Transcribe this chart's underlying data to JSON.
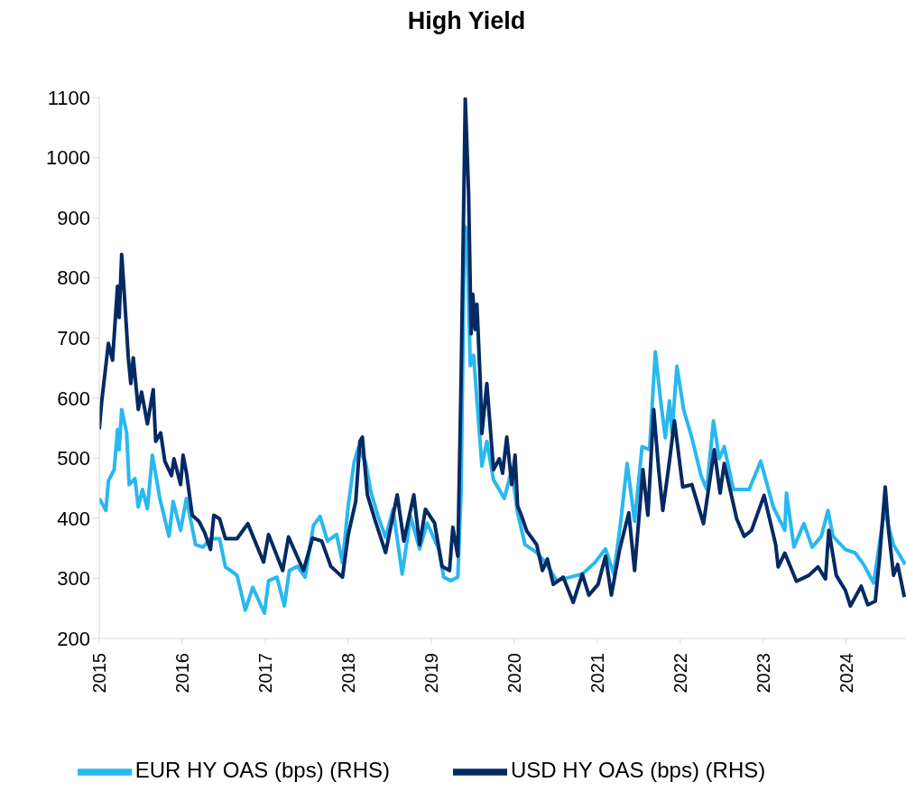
{
  "chart_data": {
    "type": "line",
    "title": "High Yield",
    "xlim": [
      2015,
      2024.72
    ],
    "xticks": [
      2015,
      2016,
      2017,
      2018,
      2019,
      2020,
      2021,
      2022,
      2023,
      2024
    ],
    "ylim": [
      200,
      1100
    ],
    "yticks": [
      200,
      300,
      400,
      500,
      600,
      700,
      800,
      900,
      1000,
      1100
    ],
    "legend": "bottom",
    "series": [
      {
        "name": "EUR HY OAS (bps) (RHS)",
        "color": "#29b8ef",
        "x": [
          2015.0,
          2015.08,
          2015.11,
          2015.18,
          2015.22,
          2015.24,
          2015.27,
          2015.33,
          2015.36,
          2015.43,
          2015.47,
          2015.52,
          2015.58,
          2015.64,
          2015.73,
          2015.84,
          2015.89,
          2015.98,
          2016.05,
          2016.16,
          2016.25,
          2016.34,
          2016.45,
          2016.52,
          2016.66,
          2016.76,
          2016.85,
          2016.99,
          2017.04,
          2017.14,
          2017.23,
          2017.29,
          2017.39,
          2017.48,
          2017.58,
          2017.66,
          2017.75,
          2017.86,
          2017.93,
          2018.0,
          2018.07,
          2018.12,
          2018.21,
          2018.27,
          2018.36,
          2018.45,
          2018.54,
          2018.65,
          2018.75,
          2018.86,
          2018.95,
          2019.09,
          2019.15,
          2019.24,
          2019.32,
          2019.36,
          2019.4,
          2019.43,
          2019.47,
          2019.51,
          2019.61,
          2019.67,
          2019.75,
          2019.88,
          2019.97,
          2020.04,
          2020.13,
          2020.27,
          2020.38,
          2020.51,
          2020.67,
          2020.82,
          2020.97,
          2021.1,
          2021.2,
          2021.28,
          2021.36,
          2021.45,
          2021.54,
          2021.63,
          2021.7,
          2021.76,
          2021.82,
          2021.87,
          2021.9,
          2021.96,
          2022.04,
          2022.14,
          2022.25,
          2022.32,
          2022.4,
          2022.47,
          2022.53,
          2022.64,
          2022.83,
          2022.97,
          2023.12,
          2023.26,
          2023.28,
          2023.37,
          2023.49,
          2023.59,
          2023.7,
          2023.78,
          2023.84,
          2023.99,
          2024.11,
          2024.21,
          2024.33,
          2024.46,
          2024.57,
          2024.65,
          2024.71
        ],
        "values": [
          433,
          413,
          462,
          481,
          548,
          514,
          581,
          542,
          456,
          466,
          419,
          448,
          416,
          505,
          433,
          370,
          428,
          380,
          433,
          356,
          352,
          366,
          366,
          319,
          305,
          247,
          285,
          242,
          296,
          302,
          254,
          313,
          320,
          302,
          388,
          403,
          362,
          373,
          326,
          421,
          493,
          517,
          493,
          445,
          403,
          368,
          415,
          307,
          403,
          349,
          392,
          349,
          302,
          296,
          302,
          445,
          886,
          880,
          654,
          671,
          487,
          528,
          464,
          433,
          481,
          409,
          356,
          343,
          326,
          296,
          302,
          307,
          326,
          349,
          307,
          391,
          491,
          395,
          519,
          514,
          677,
          600,
          534,
          595,
          542,
          653,
          581,
          534,
          471,
          448,
          562,
          499,
          519,
          448,
          448,
          495,
          419,
          380,
          442,
          352,
          391,
          352,
          370,
          413,
          370,
          348,
          342,
          323,
          292,
          413,
          356,
          337,
          323
        ]
      },
      {
        "name": "USD HY OAS (bps) (RHS)",
        "color": "#052a63",
        "x": [
          2015.0,
          2015.03,
          2015.11,
          2015.16,
          2015.22,
          2015.24,
          2015.27,
          2015.3,
          2015.35,
          2015.38,
          2015.41,
          2015.47,
          2015.51,
          2015.58,
          2015.65,
          2015.68,
          2015.74,
          2015.79,
          2015.87,
          2015.9,
          2015.98,
          2016.01,
          2016.05,
          2016.12,
          2016.2,
          2016.27,
          2016.34,
          2016.38,
          2016.45,
          2016.52,
          2016.66,
          2016.79,
          2016.98,
          2017.04,
          2017.21,
          2017.28,
          2017.46,
          2017.57,
          2017.68,
          2017.79,
          2017.93,
          2018.0,
          2018.09,
          2018.14,
          2018.17,
          2018.23,
          2018.32,
          2018.45,
          2018.59,
          2018.67,
          2018.79,
          2018.86,
          2018.93,
          2019.04,
          2019.13,
          2019.22,
          2019.26,
          2019.32,
          2019.36,
          2019.41,
          2019.45,
          2019.48,
          2019.5,
          2019.53,
          2019.55,
          2019.59,
          2019.61,
          2019.67,
          2019.75,
          2019.82,
          2019.86,
          2019.91,
          2019.97,
          2020.01,
          2020.04,
          2020.09,
          2020.15,
          2020.27,
          2020.34,
          2020.4,
          2020.47,
          2020.59,
          2020.71,
          2020.82,
          2020.9,
          2021.01,
          2021.1,
          2021.17,
          2021.27,
          2021.38,
          2021.45,
          2021.55,
          2021.61,
          2021.68,
          2021.74,
          2021.79,
          2021.87,
          2021.93,
          2022.03,
          2022.14,
          2022.28,
          2022.41,
          2022.48,
          2022.53,
          2022.68,
          2022.77,
          2022.86,
          2023.01,
          2023.15,
          2023.18,
          2023.26,
          2023.4,
          2023.55,
          2023.66,
          2023.75,
          2023.79,
          2023.88,
          2023.99,
          2024.05,
          2024.18,
          2024.26,
          2024.35,
          2024.4,
          2024.47,
          2024.51,
          2024.57,
          2024.62,
          2024.7
        ],
        "values": [
          548,
          595,
          691,
          663,
          786,
          734,
          839,
          777,
          667,
          624,
          667,
          581,
          610,
          557,
          614,
          528,
          542,
          495,
          471,
          499,
          456,
          505,
          476,
          405,
          395,
          376,
          348,
          405,
          399,
          366,
          366,
          391,
          327,
          373,
          313,
          369,
          313,
          367,
          362,
          320,
          302,
          373,
          428,
          528,
          535,
          439,
          398,
          343,
          439,
          362,
          439,
          356,
          415,
          392,
          320,
          313,
          385,
          337,
          635,
          1098,
          941,
          707,
          773,
          714,
          756,
          630,
          541,
          624,
          481,
          499,
          475,
          535,
          456,
          505,
          421,
          403,
          379,
          356,
          313,
          332,
          290,
          302,
          260,
          307,
          272,
          290,
          337,
          272,
          348,
          409,
          313,
          481,
          405,
          581,
          481,
          413,
          495,
          562,
          452,
          456,
          391,
          514,
          442,
          491,
          399,
          370,
          380,
          438,
          356,
          319,
          342,
          295,
          305,
          319,
          299,
          380,
          305,
          280,
          254,
          287,
          256,
          262,
          333,
          452,
          380,
          305,
          323,
          269
        ]
      }
    ]
  }
}
